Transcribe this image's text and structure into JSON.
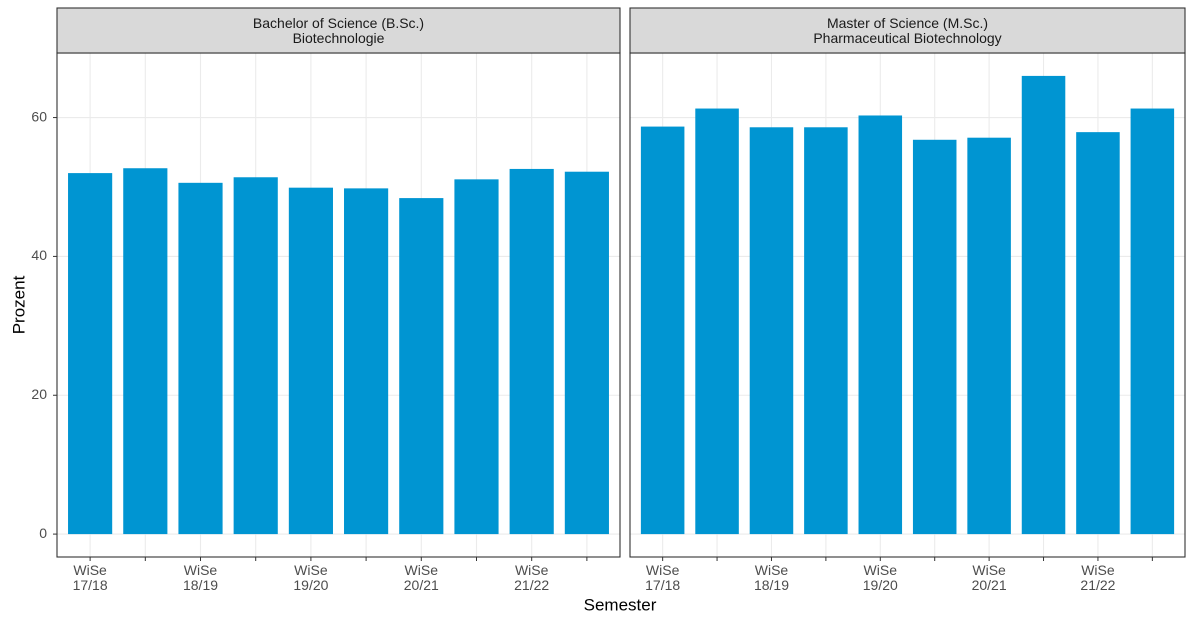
{
  "chart_data": {
    "type": "bar",
    "x_label": "Semester",
    "y_label": "Prozent",
    "color": "#0095d2",
    "grid": true,
    "ylim": [
      -3.3,
      69.3
    ],
    "yticks": [
      0,
      20,
      40,
      60
    ],
    "facets": [
      {
        "title": "Bachelor of Science (B.Sc.)\nBiotechnologie",
        "categories": [
          "WiSe\n17/18",
          null,
          "WiSe\n18/19",
          null,
          "WiSe\n19/20",
          null,
          "WiSe\n20/21",
          null,
          "WiSe\n21/22",
          null
        ],
        "values": [
          52.0,
          52.7,
          50.6,
          51.4,
          49.9,
          49.8,
          48.4,
          51.1,
          52.6,
          52.2
        ]
      },
      {
        "title": "Master of Science (M.Sc.)\nPharmaceutical Biotechnology",
        "categories": [
          "WiSe\n17/18",
          null,
          "WiSe\n18/19",
          null,
          "WiSe\n19/20",
          null,
          "WiSe\n20/21",
          null,
          "WiSe\n21/22",
          null
        ],
        "values": [
          58.7,
          61.3,
          58.6,
          58.6,
          60.3,
          56.8,
          57.1,
          66.0,
          57.9,
          61.3
        ]
      }
    ]
  }
}
